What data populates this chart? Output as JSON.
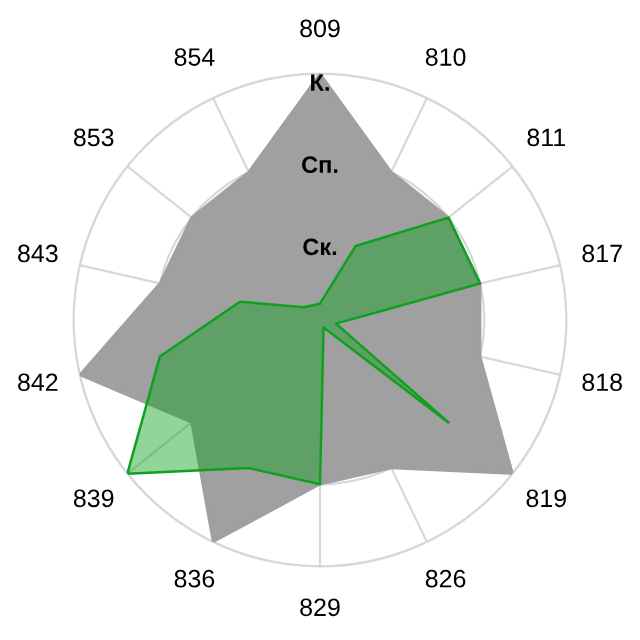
{
  "chart_data": {
    "type": "radar",
    "categories": [
      "809",
      "810",
      "811",
      "817",
      "818",
      "819",
      "826",
      "829",
      "836",
      "839",
      "842",
      "843",
      "853",
      "854"
    ],
    "series": [
      {
        "color": "#a0a0a0",
        "values": [
          3,
          2,
          2,
          2,
          2,
          3,
          2,
          2,
          3,
          2,
          3,
          2,
          2,
          2
        ]
      },
      {
        "color": "#10a020",
        "values": [
          0.2,
          1,
          2,
          2,
          0.2,
          2,
          0.1,
          2,
          2,
          3,
          2,
          1,
          0.25,
          0.2
        ]
      }
    ],
    "ylim": [
      0,
      3
    ],
    "yticks": [
      {
        "value": 1,
        "label": "Ск."
      },
      {
        "value": 2,
        "label": "Сп."
      },
      {
        "value": 3,
        "label": "К."
      }
    ],
    "grid": true,
    "marker": "none",
    "line_style": "solid"
  }
}
